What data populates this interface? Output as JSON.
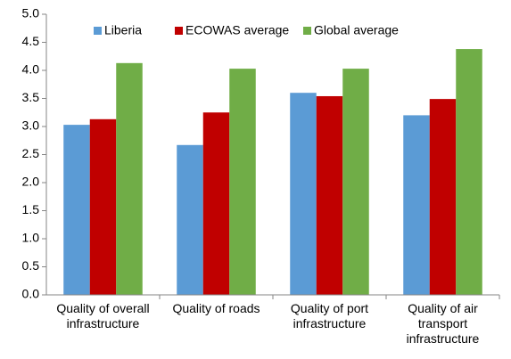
{
  "chart_data": {
    "type": "bar",
    "categories": [
      "Quality of overall infrastructure",
      "Quality of roads",
      "Quality of port infrastructure",
      "Quality of air transport infrastructure"
    ],
    "series": [
      {
        "name": "Liberia",
        "color": "#5b9bd5",
        "values": [
          3.03,
          2.67,
          3.6,
          3.2
        ]
      },
      {
        "name": "ECOWAS average",
        "color": "#c00000",
        "values": [
          3.13,
          3.25,
          3.54,
          3.49
        ]
      },
      {
        "name": "Global average",
        "color": "#70ad47",
        "values": [
          4.13,
          4.03,
          4.03,
          4.38
        ]
      }
    ],
    "ylim": [
      0,
      5
    ],
    "yticks": [
      {
        "value": 0,
        "label": "0.0"
      },
      0.5,
      {
        "value": 1,
        "label": "1.0"
      },
      1.5,
      {
        "value": 2,
        "label": "2.0"
      },
      2.5,
      {
        "value": 3,
        "label": "3.0"
      },
      3.5,
      {
        "value": 4,
        "label": "4.0"
      },
      4.5,
      {
        "value": 5,
        "label": "5.0"
      }
    ],
    "grid": false,
    "legend": "top"
  }
}
